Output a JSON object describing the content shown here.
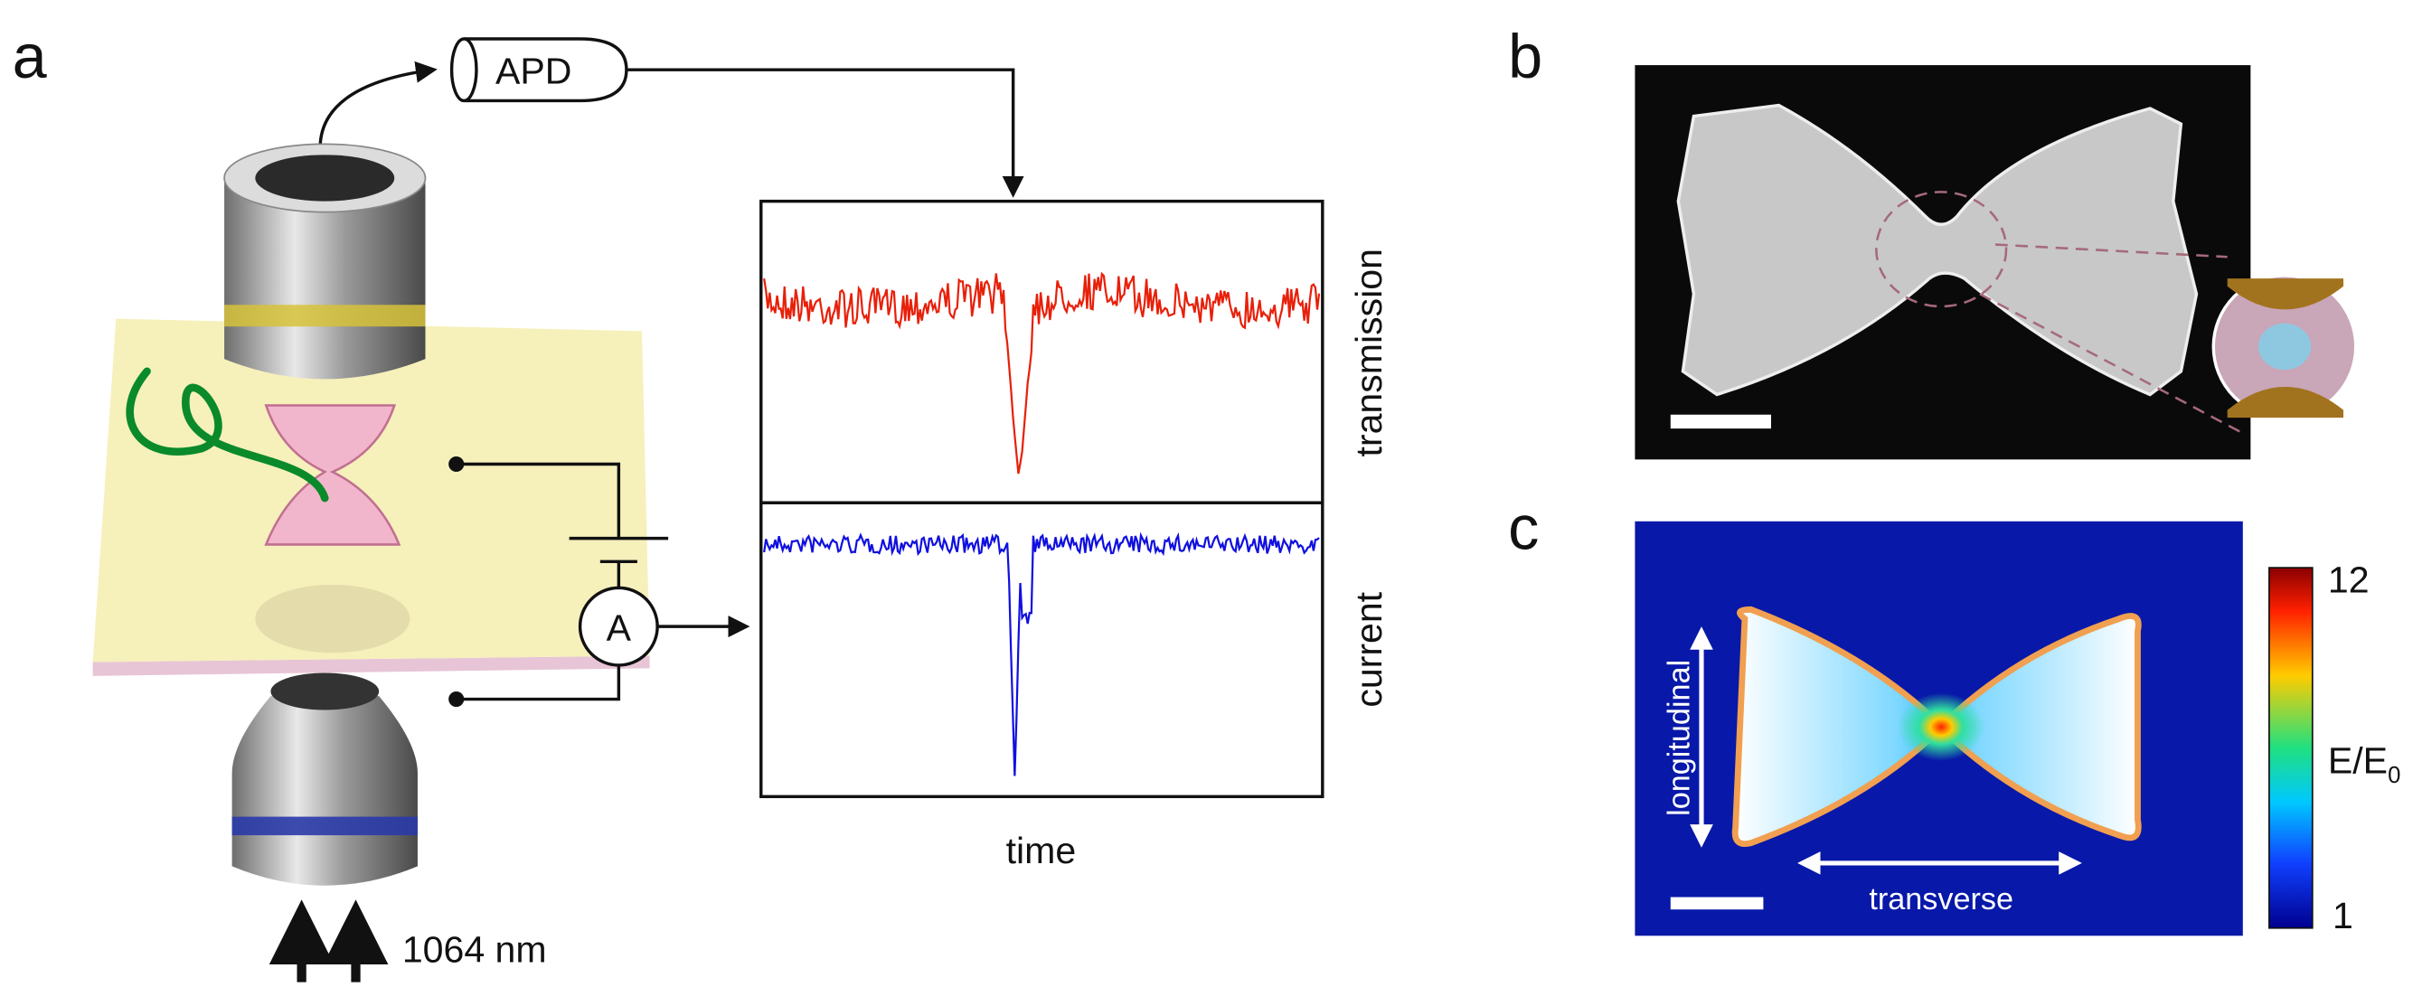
{
  "panels": {
    "a": {
      "label": "a",
      "apd": "APD",
      "ammeter": "A",
      "laser": "1064 nm",
      "plot": {
        "top_label": "transmission",
        "bottom_label": "current",
        "x_label": "time"
      }
    },
    "b": {
      "label": "b"
    },
    "c": {
      "label": "c",
      "arrows": {
        "vertical": "longitudinal",
        "horizontal": "transverse"
      },
      "colorbar": {
        "max": "12",
        "min": "1",
        "label": "E/E",
        "label_subscript": "0"
      }
    }
  }
}
